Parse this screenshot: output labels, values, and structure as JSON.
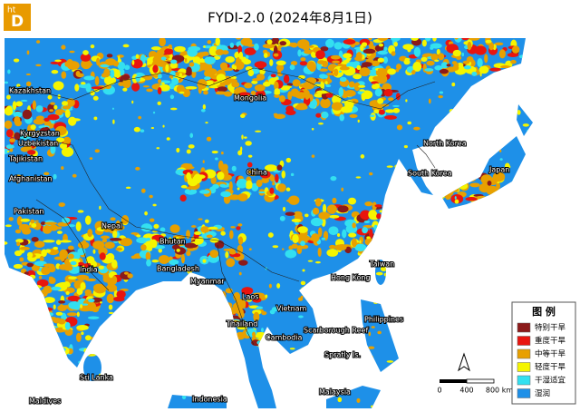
{
  "logo": {
    "small": "ht",
    "big": "D"
  },
  "title": "FYDI-2.0 (2024年8月1日)",
  "labels": [
    "Kazakhstan",
    "Mongolia",
    "Kyrgyzstan",
    "Uzbekistan",
    "Tajikistan",
    "Afghanistan",
    "Pakistan",
    "Nepal",
    "Bhutan",
    "India",
    "Bangladesh",
    "Myanmar",
    "China",
    "North Korea",
    "South Korea",
    "Japan",
    "Taiwan",
    "Hong Kong",
    "Laos",
    "Vietnam",
    "Thailand",
    "Cambodia",
    "Scarborough Reef",
    "Philippines",
    "Spratly Is.",
    "Sri Lanka",
    "Maldives",
    "Malaysia",
    "Indonesia"
  ],
  "legend": {
    "title": "图 例",
    "items": [
      {
        "label": "特别干旱",
        "color": "#8b1a1a"
      },
      {
        "label": "重度干旱",
        "color": "#e8150f"
      },
      {
        "label": "中等干旱",
        "color": "#e8a000"
      },
      {
        "label": "轻度干旱",
        "color": "#f5f500"
      },
      {
        "label": "干湿适宜",
        "color": "#33e0f0"
      },
      {
        "label": "湿润",
        "color": "#1e90e8"
      }
    ]
  },
  "scale_bar": {
    "ticks": [
      "0",
      "400",
      "800 km"
    ]
  }
}
